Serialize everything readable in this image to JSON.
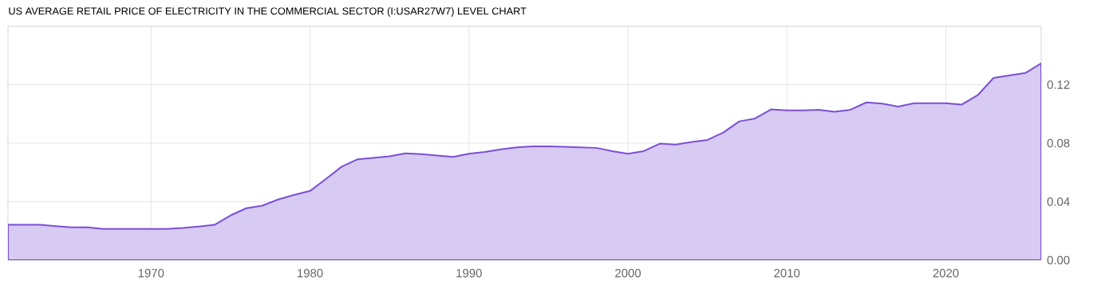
{
  "chart_data": {
    "type": "area",
    "title": "US AVERAGE RETAIL PRICE OF ELECTRICITY IN THE COMMERCIAL SECTOR (I:USAR27W7) LEVEL CHART",
    "x": [
      1961,
      1962,
      1963,
      1964,
      1965,
      1966,
      1967,
      1968,
      1969,
      1970,
      1971,
      1972,
      1973,
      1974,
      1975,
      1976,
      1977,
      1978,
      1979,
      1980,
      1981,
      1982,
      1983,
      1984,
      1985,
      1986,
      1987,
      1988,
      1989,
      1990,
      1991,
      1992,
      1993,
      1994,
      1995,
      1996,
      1997,
      1998,
      1999,
      2000,
      2001,
      2002,
      2003,
      2004,
      2005,
      2006,
      2007,
      2008,
      2009,
      2010,
      2011,
      2012,
      2013,
      2014,
      2015,
      2016,
      2017,
      2018,
      2019,
      2020,
      2021,
      2022,
      2023,
      2024,
      2025,
      2026
    ],
    "values": [
      0.0242,
      0.0242,
      0.0242,
      0.0233,
      0.0224,
      0.0224,
      0.0213,
      0.0213,
      0.0213,
      0.0213,
      0.0213,
      0.022,
      0.023,
      0.0242,
      0.0306,
      0.0355,
      0.0373,
      0.0415,
      0.0446,
      0.0473,
      0.0555,
      0.064,
      0.069,
      0.07,
      0.071,
      0.0731,
      0.0725,
      0.0716,
      0.0706,
      0.0728,
      0.074,
      0.0758,
      0.0771,
      0.0778,
      0.0778,
      0.0775,
      0.0772,
      0.0768,
      0.0746,
      0.0728,
      0.0746,
      0.0797,
      0.0791,
      0.0808,
      0.0822,
      0.0873,
      0.0949,
      0.0969,
      0.1031,
      0.1024,
      0.1024,
      0.1029,
      0.1015,
      0.1029,
      0.1079,
      0.1071,
      0.105,
      0.1073,
      0.1073,
      0.1073,
      0.1064,
      0.1128,
      0.1246,
      0.1264,
      0.128,
      0.1346
    ],
    "color": "#7b4fd6",
    "xlim": [
      1961,
      2026
    ],
    "ylim": [
      0,
      0.16
    ],
    "xticks": [
      1970,
      1980,
      1990,
      2000,
      2010,
      2020
    ],
    "yticks": [
      {
        "value": 0,
        "label": "0.00"
      },
      {
        "value": 0.04,
        "label": "0.04"
      },
      {
        "value": 0.08,
        "label": "0.08"
      },
      {
        "value": 0.12,
        "label": "0.12"
      }
    ],
    "grid": true
  }
}
